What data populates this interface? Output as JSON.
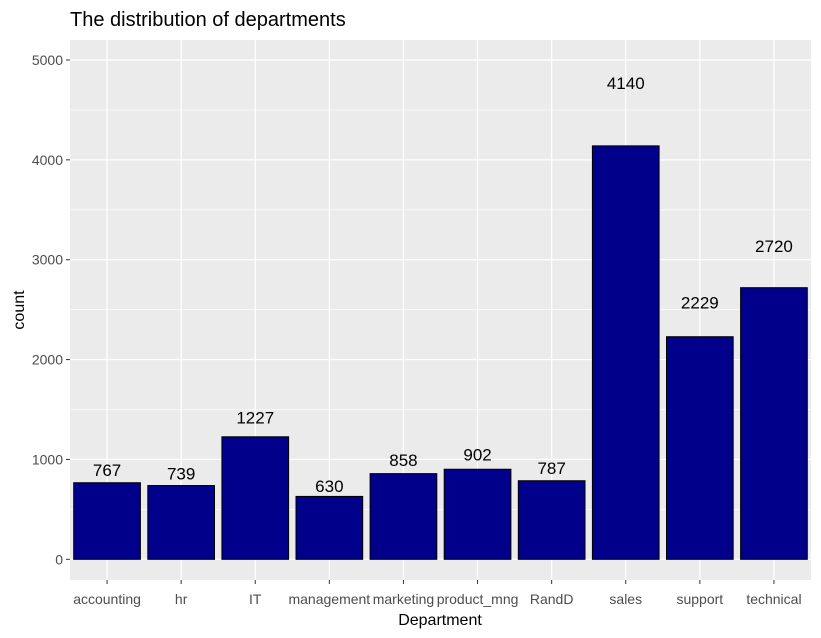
{
  "chart_data": {
    "type": "bar",
    "title": "The distribution of departments",
    "xlabel": "Department",
    "ylabel": "count",
    "categories": [
      "accounting",
      "hr",
      "IT",
      "management",
      "marketing",
      "product_mng",
      "RandD",
      "sales",
      "support",
      "technical"
    ],
    "values": [
      767,
      739,
      1227,
      630,
      858,
      902,
      787,
      4140,
      2229,
      2720
    ],
    "data_labels": [
      "767",
      "739",
      "1227",
      "630",
      "858",
      "902",
      "787",
      "4140",
      "2229",
      "2720"
    ],
    "ylim": [
      -207,
      5200
    ],
    "yticks": [
      0,
      1000,
      2000,
      3000,
      4000,
      5000
    ],
    "grid": true,
    "legend": "none",
    "colors": {
      "bar_fill": "#00008B",
      "bar_outline": "#000000",
      "panel_background": "#EBEBEB",
      "grid": "#FFFFFF"
    }
  }
}
